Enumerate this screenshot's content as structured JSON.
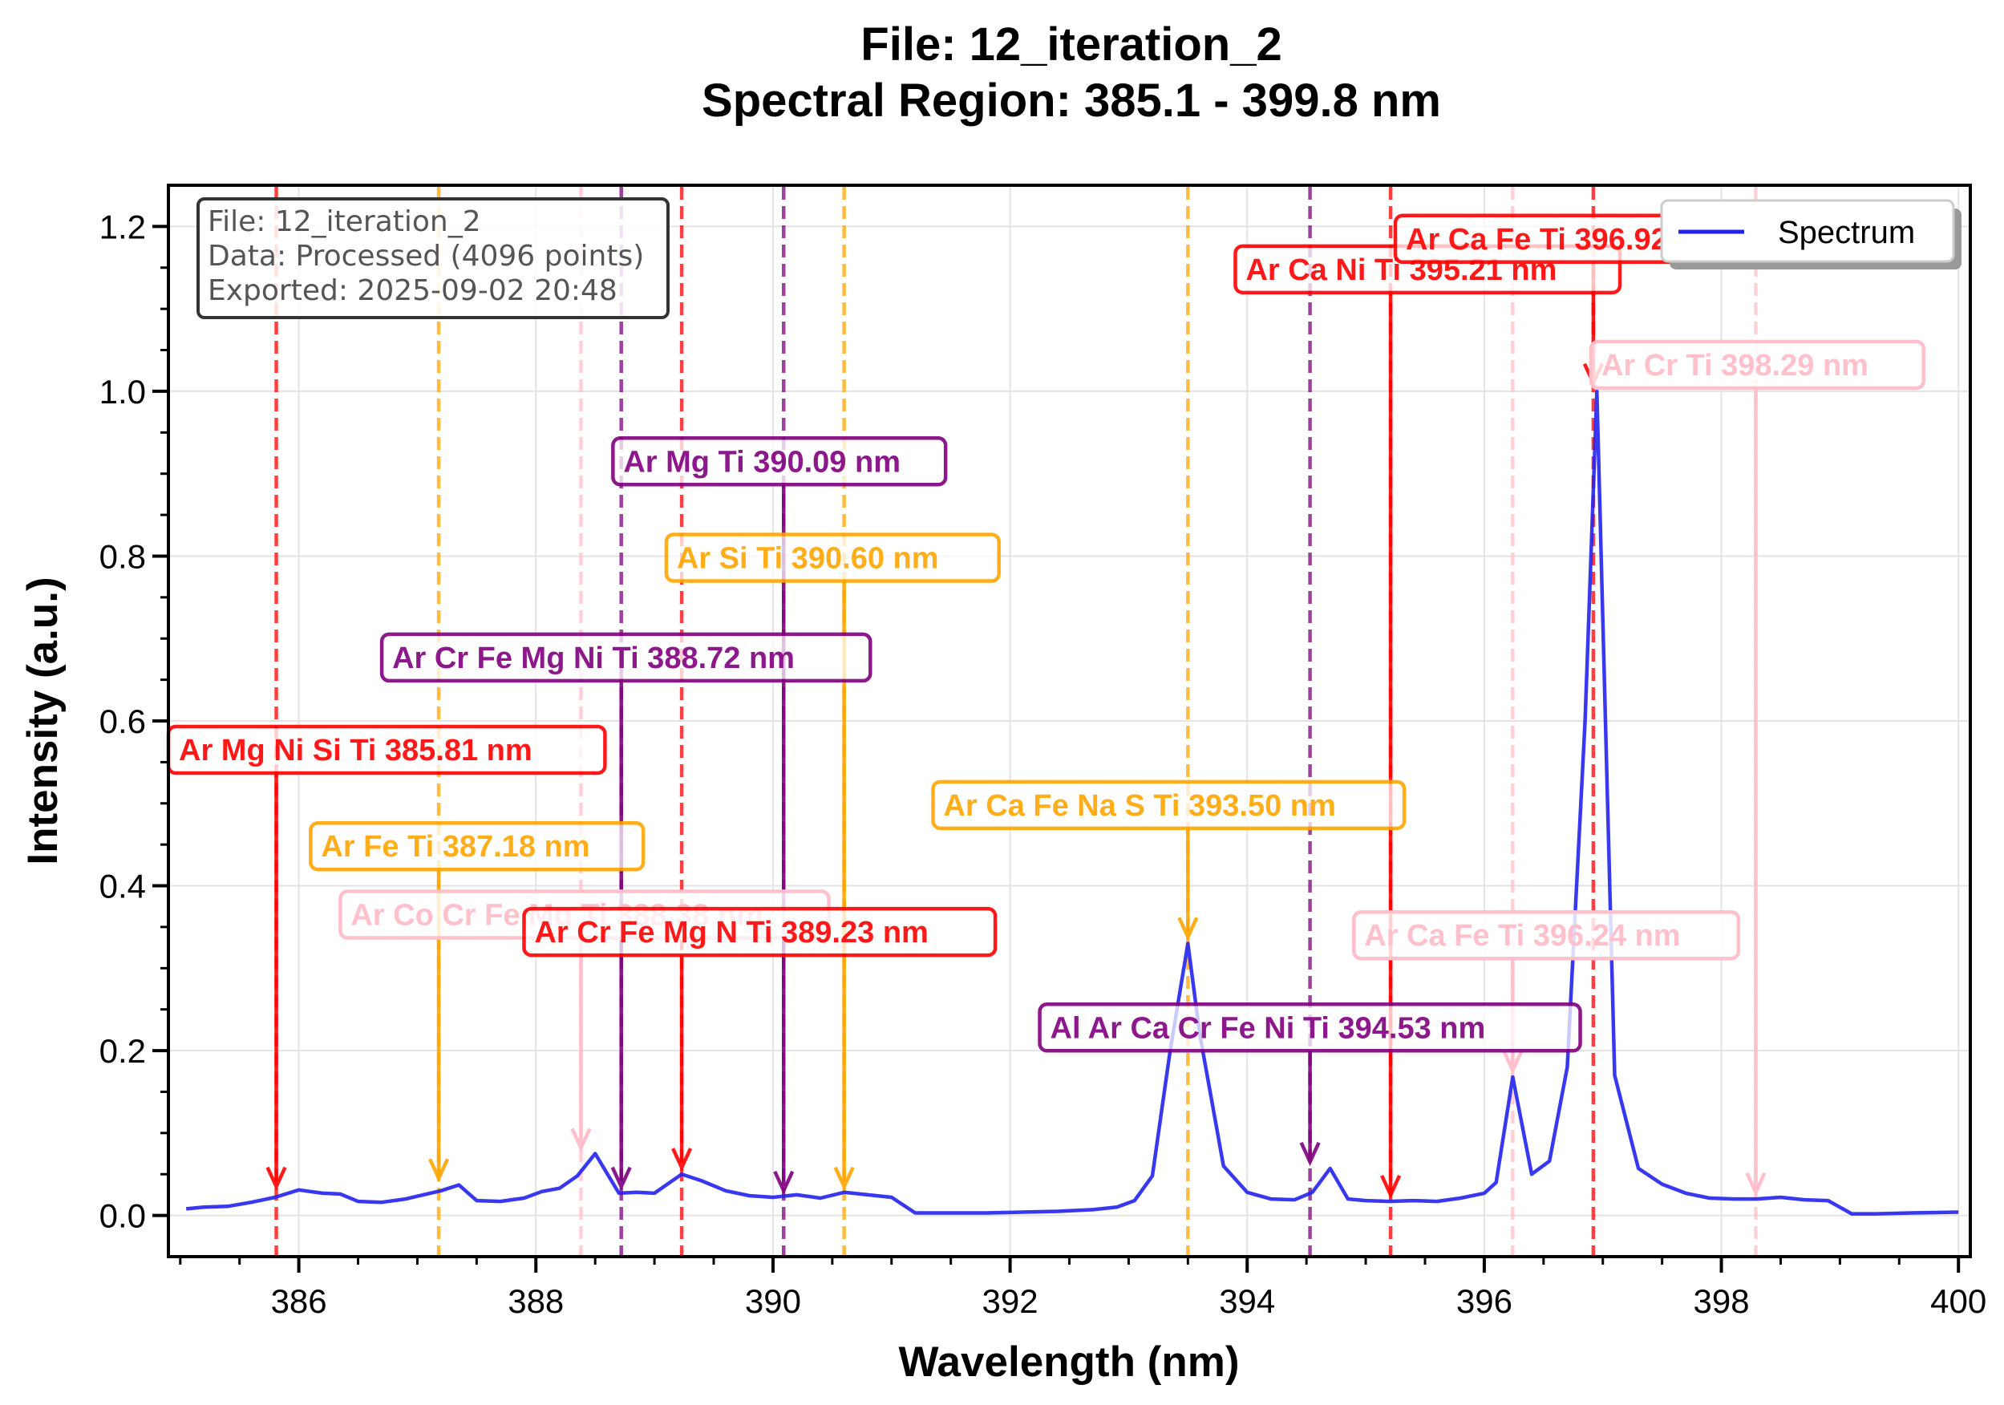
{
  "title_line1": "File: 12_iteration_2",
  "title_line2": "Spectral Region: 385.1 - 399.8 nm",
  "info_box": {
    "line1": "File: 12_iteration_2",
    "line2": "Data: Processed (4096 points)",
    "line3": "Exported: 2025-09-02 20:48"
  },
  "legend": {
    "label": "Spectrum"
  },
  "colors": {
    "spectrum": "#2222ee",
    "red": "#ff0000",
    "purple": "#800080",
    "orange": "#ffa500",
    "pink": "#ffc0cb"
  },
  "chart_data": {
    "type": "line",
    "xlabel": "Wavelength (nm)",
    "ylabel": "Intensity (a.u.)",
    "xlim": [
      384.9,
      400.1
    ],
    "ylim": [
      -0.05,
      1.25
    ],
    "xticks": [
      386,
      388,
      390,
      392,
      394,
      396,
      398,
      400
    ],
    "yticks": [
      0.0,
      0.2,
      0.4,
      0.6,
      0.8,
      1.0,
      1.2
    ],
    "xtick_labels": [
      "386",
      "388",
      "390",
      "392",
      "394",
      "396",
      "398",
      "400"
    ],
    "ytick_labels": [
      "0.0",
      "0.2",
      "0.4",
      "0.6",
      "0.8",
      "1.0",
      "1.2"
    ],
    "grid": true,
    "legend_position": "top-right",
    "series": [
      {
        "name": "Spectrum",
        "x": [
          385.05,
          385.2,
          385.4,
          385.6,
          385.8,
          386.0,
          386.2,
          386.35,
          386.5,
          386.7,
          386.9,
          387.05,
          387.2,
          387.35,
          387.5,
          387.7,
          387.9,
          388.05,
          388.2,
          388.35,
          388.5,
          388.7,
          388.85,
          389.0,
          389.23,
          389.4,
          389.6,
          389.8,
          390.0,
          390.2,
          390.4,
          390.6,
          390.8,
          391.0,
          391.2,
          391.5,
          391.8,
          392.1,
          392.4,
          392.7,
          392.9,
          393.05,
          393.2,
          393.35,
          393.5,
          393.6,
          393.8,
          394.0,
          394.2,
          394.4,
          394.55,
          394.7,
          394.85,
          395.0,
          395.2,
          395.4,
          395.6,
          395.8,
          396.0,
          396.1,
          396.24,
          396.4,
          396.55,
          396.7,
          396.85,
          396.95,
          397.1,
          397.3,
          397.5,
          397.7,
          397.9,
          398.1,
          398.3,
          398.5,
          398.7,
          398.9,
          399.1,
          399.3,
          399.6,
          400.0
        ],
        "values": [
          0.008,
          0.01,
          0.011,
          0.016,
          0.022,
          0.031,
          0.027,
          0.026,
          0.017,
          0.016,
          0.02,
          0.025,
          0.03,
          0.037,
          0.018,
          0.017,
          0.021,
          0.029,
          0.033,
          0.048,
          0.075,
          0.027,
          0.028,
          0.027,
          0.05,
          0.042,
          0.03,
          0.024,
          0.022,
          0.025,
          0.021,
          0.028,
          0.025,
          0.022,
          0.003,
          0.003,
          0.003,
          0.004,
          0.005,
          0.007,
          0.01,
          0.018,
          0.048,
          0.2,
          0.33,
          0.22,
          0.06,
          0.028,
          0.02,
          0.019,
          0.028,
          0.057,
          0.02,
          0.018,
          0.017,
          0.018,
          0.017,
          0.021,
          0.027,
          0.04,
          0.168,
          0.05,
          0.066,
          0.18,
          0.6,
          1.0,
          0.17,
          0.057,
          0.038,
          0.027,
          0.021,
          0.02,
          0.02,
          0.022,
          0.019,
          0.018,
          0.002,
          0.002,
          0.003,
          0.004
        ]
      }
    ],
    "annotations": [
      {
        "label": "Ar Mg Ni Si Ti 385.81 nm",
        "x": 385.81,
        "label_x": 384.9,
        "label_y": 0.565,
        "arrow_y": 0.035,
        "color": "red"
      },
      {
        "label": "Ar Fe Ti 387.18 nm",
        "x": 387.18,
        "label_x": 386.1,
        "label_y": 0.448,
        "arrow_y": 0.045,
        "color": "orange"
      },
      {
        "label": "Ar Co Cr Fe Mg Ti 388.38 nm",
        "x": 388.38,
        "label_x": 386.35,
        "label_y": 0.365,
        "arrow_y": 0.082,
        "color": "pink"
      },
      {
        "label": "Ar Cr Fe Mg Ni Ti 388.72 nm",
        "x": 388.72,
        "label_x": 386.7,
        "label_y": 0.677,
        "arrow_y": 0.035,
        "color": "purple"
      },
      {
        "label": "Ar Cr Fe Mg N Ti 389.23 nm",
        "x": 389.23,
        "label_x": 387.9,
        "label_y": 0.344,
        "arrow_y": 0.058,
        "color": "red"
      },
      {
        "label": "Ar Mg Ti 390.09 nm",
        "x": 390.09,
        "label_x": 388.65,
        "label_y": 0.915,
        "arrow_y": 0.03,
        "color": "purple"
      },
      {
        "label": "Ar Si Ti 390.60 nm",
        "x": 390.6,
        "label_x": 389.1,
        "label_y": 0.798,
        "arrow_y": 0.035,
        "color": "orange"
      },
      {
        "label": "Ar Ca Fe Na S Ti 393.50 nm",
        "x": 393.5,
        "label_x": 391.35,
        "label_y": 0.498,
        "arrow_y": 0.338,
        "color": "orange"
      },
      {
        "label": "Al Ar Ca Cr Fe Ni Ti 394.53 nm",
        "x": 394.53,
        "label_x": 392.25,
        "label_y": 0.228,
        "arrow_y": 0.065,
        "color": "purple"
      },
      {
        "label": "Ar Ca Ni Ti 395.21 nm",
        "x": 395.21,
        "label_x": 393.9,
        "label_y": 1.148,
        "arrow_y": 0.025,
        "color": "red"
      },
      {
        "label": "Ar Ca Fe Ti 396.24 nm",
        "x": 396.24,
        "label_x": 394.9,
        "label_y": 0.34,
        "arrow_y": 0.176,
        "color": "pink"
      },
      {
        "label": "Ar Ca Fe Ti 396.92 nm",
        "x": 396.92,
        "label_x": 395.25,
        "label_y": 1.185,
        "arrow_y": 1.01,
        "color": "red"
      },
      {
        "label": "Ar Cr Ti 398.29 nm",
        "x": 398.29,
        "label_x": 396.9,
        "label_y": 1.032,
        "arrow_y": 0.028,
        "color": "pink"
      }
    ]
  }
}
